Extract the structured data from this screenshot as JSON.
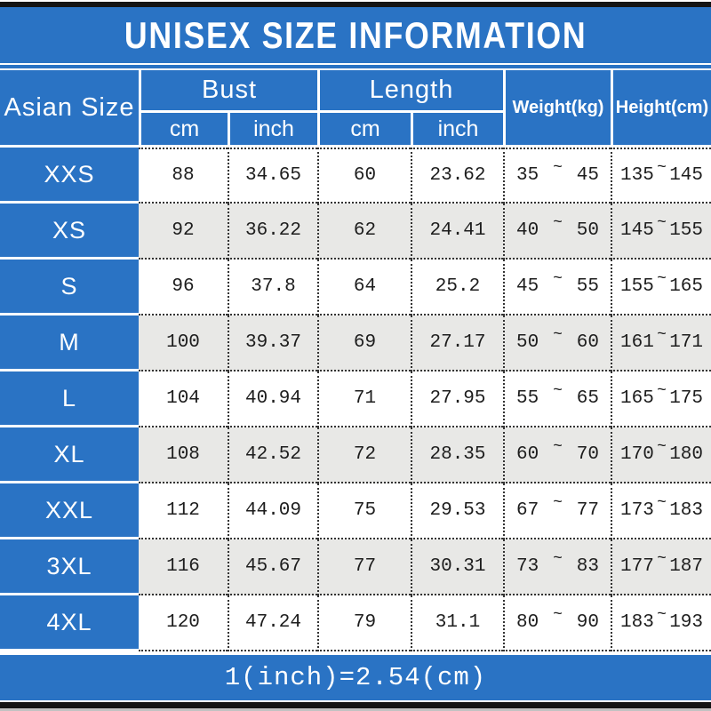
{
  "chart_data": {
    "type": "table",
    "title": "UNISEX SIZE INFORMATION",
    "columns": [
      "Asian Size",
      "Bust cm",
      "Bust inch",
      "Length cm",
      "Length inch",
      "Weight(kg)",
      "Height(cm)"
    ],
    "rows": [
      [
        "XXS",
        "88",
        "34.65",
        "60",
        "23.62",
        "35 ~ 45",
        "135 ~ 145"
      ],
      [
        "XS",
        "92",
        "36.22",
        "62",
        "24.41",
        "40 ~ 50",
        "145 ~ 155"
      ],
      [
        "S",
        "96",
        "37.8",
        "64",
        "25.2",
        "45 ~ 55",
        "155 ~ 165"
      ],
      [
        "M",
        "100",
        "39.37",
        "69",
        "27.17",
        "50 ~ 60",
        "161 ~ 171"
      ],
      [
        "L",
        "104",
        "40.94",
        "71",
        "27.95",
        "55 ~ 65",
        "165 ~ 175"
      ],
      [
        "XL",
        "108",
        "42.52",
        "72",
        "28.35",
        "60 ~ 70",
        "170 ~ 180"
      ],
      [
        "XXL",
        "112",
        "44.09",
        "75",
        "29.53",
        "67 ~ 77",
        "173 ~ 183"
      ],
      [
        "3XL",
        "116",
        "45.67",
        "77",
        "30.31",
        "73 ~ 83",
        "177 ~ 187"
      ],
      [
        "4XL",
        "120",
        "47.24",
        "79",
        "31.1",
        "80 ~ 90",
        "183 ~ 193"
      ]
    ],
    "note": "1(inch)=2.54(cm)"
  },
  "title": "UNISEX SIZE INFORMATION",
  "header": {
    "size_col": "Asian Size",
    "bust": {
      "label": "Bust",
      "cm": "cm",
      "inch": "inch"
    },
    "length": {
      "label": "Length",
      "cm": "cm",
      "inch": "inch"
    },
    "weight": "Weight(kg)",
    "height": "Height(cm)"
  },
  "tilde": "~",
  "rows": [
    {
      "size": "XXS",
      "bust_cm": "88",
      "bust_inch": "34.65",
      "length_cm": "60",
      "length_inch": "23.62",
      "weight_min": "35",
      "weight_max": "45",
      "height_min": "135",
      "height_max": "145"
    },
    {
      "size": "XS",
      "bust_cm": "92",
      "bust_inch": "36.22",
      "length_cm": "62",
      "length_inch": "24.41",
      "weight_min": "40",
      "weight_max": "50",
      "height_min": "145",
      "height_max": "155"
    },
    {
      "size": "S",
      "bust_cm": "96",
      "bust_inch": "37.8",
      "length_cm": "64",
      "length_inch": "25.2",
      "weight_min": "45",
      "weight_max": "55",
      "height_min": "155",
      "height_max": "165"
    },
    {
      "size": "M",
      "bust_cm": "100",
      "bust_inch": "39.37",
      "length_cm": "69",
      "length_inch": "27.17",
      "weight_min": "50",
      "weight_max": "60",
      "height_min": "161",
      "height_max": "171"
    },
    {
      "size": "L",
      "bust_cm": "104",
      "bust_inch": "40.94",
      "length_cm": "71",
      "length_inch": "27.95",
      "weight_min": "55",
      "weight_max": "65",
      "height_min": "165",
      "height_max": "175"
    },
    {
      "size": "XL",
      "bust_cm": "108",
      "bust_inch": "42.52",
      "length_cm": "72",
      "length_inch": "28.35",
      "weight_min": "60",
      "weight_max": "70",
      "height_min": "170",
      "height_max": "180"
    },
    {
      "size": "XXL",
      "bust_cm": "112",
      "bust_inch": "44.09",
      "length_cm": "75",
      "length_inch": "29.53",
      "weight_min": "67",
      "weight_max": "77",
      "height_min": "173",
      "height_max": "183"
    },
    {
      "size": "3XL",
      "bust_cm": "116",
      "bust_inch": "45.67",
      "length_cm": "77",
      "length_inch": "30.31",
      "weight_min": "73",
      "weight_max": "83",
      "height_min": "177",
      "height_max": "187"
    },
    {
      "size": "4XL",
      "bust_cm": "120",
      "bust_inch": "47.24",
      "length_cm": "79",
      "length_inch": "31.1",
      "weight_min": "80",
      "weight_max": "90",
      "height_min": "183",
      "height_max": "193"
    }
  ],
  "footer": "1(inch)=2.54(cm)",
  "colors": {
    "accent_blue": "#2a73c4",
    "alt_row_gray": "#e8e8e6",
    "frame_black": "#141414",
    "text_white": "#ffffff",
    "text_dark": "#1d1d1d"
  }
}
